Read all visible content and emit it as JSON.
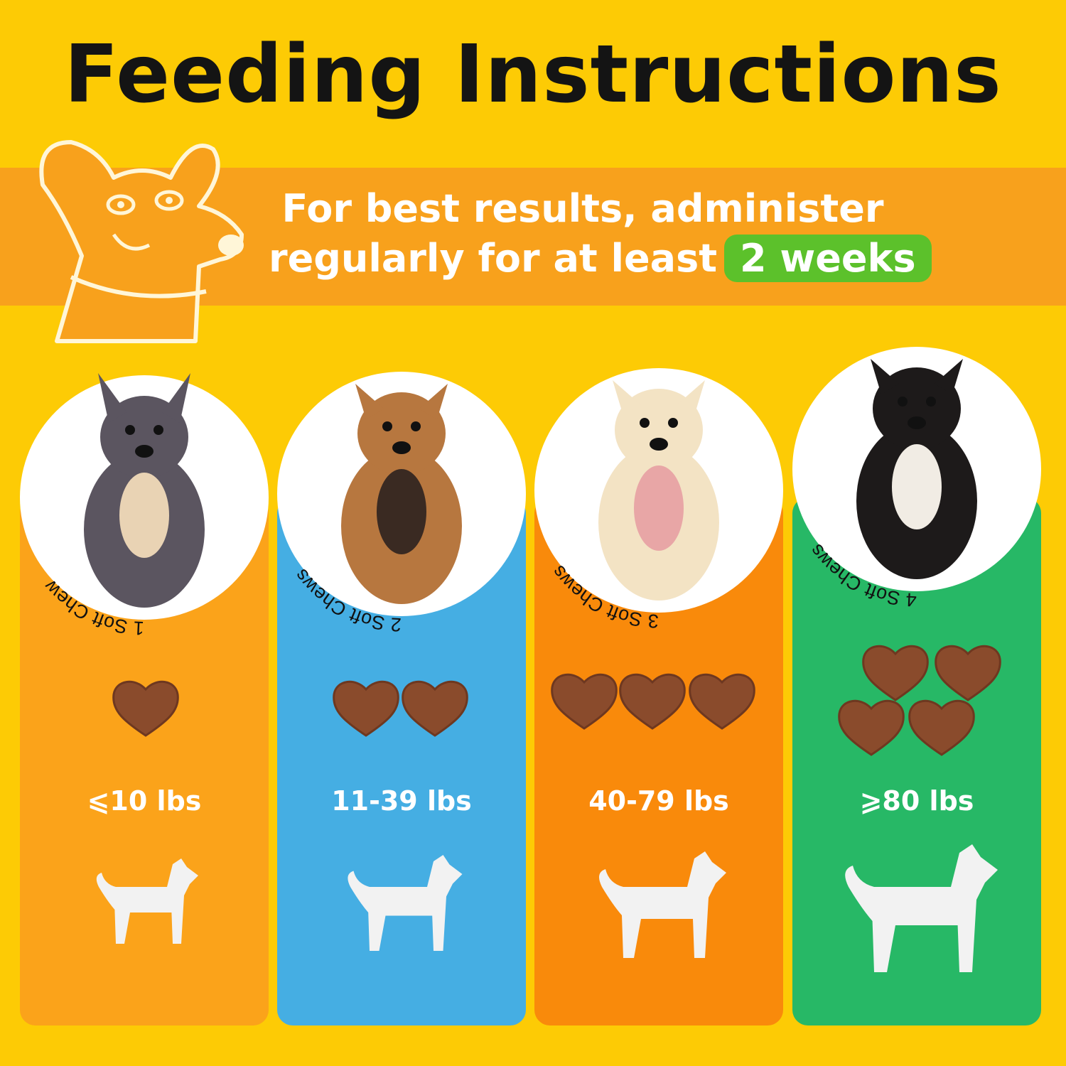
{
  "title": "Feeding Instructions",
  "banner": {
    "line1": "For best results, administer",
    "line2": "regularly for at least",
    "highlight": "2 weeks",
    "band_color": "#F8A11C",
    "highlight_color": "#5CC12B"
  },
  "background_color": "#FDCB05",
  "columns": [
    {
      "weight": "⩽10 lbs",
      "chews": 1,
      "ring_text": "1 Soft Chew",
      "color": "#FBA31A",
      "dog": "chihuahua-photo",
      "silhouette": "small-dog-silhouette-icon"
    },
    {
      "weight": "11-39 lbs",
      "chews": 2,
      "ring_text": "2 Soft Chews",
      "color": "#45AEE3",
      "dog": "french-bulldog-photo",
      "silhouette": "medium-dog-silhouette-icon"
    },
    {
      "weight": "40-79 lbs",
      "chews": 3,
      "ring_text": "3 Soft Chews",
      "color": "#F98A0B",
      "dog": "golden-retriever-puppy-photo",
      "silhouette": "large-dog-silhouette-icon"
    },
    {
      "weight": "⩾80 lbs",
      "chews": 4,
      "ring_text": "4 Soft Chews",
      "color": "#27B866",
      "dog": "bernese-mountain-dog-photo",
      "silhouette": "giant-dog-silhouette-icon"
    }
  ]
}
